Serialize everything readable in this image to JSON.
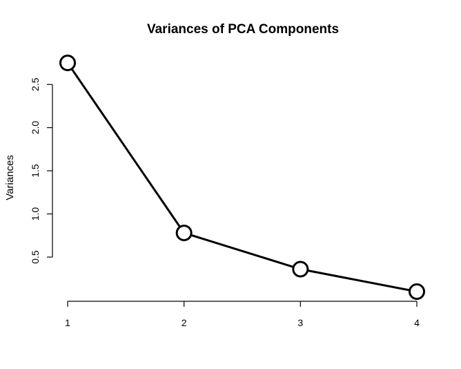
{
  "chart_data": {
    "type": "line",
    "title": "Variances of PCA Components",
    "xlabel": "",
    "ylabel": "Variances",
    "x": [
      1,
      2,
      3,
      4
    ],
    "values": [
      2.75,
      0.78,
      0.36,
      0.1
    ],
    "x_ticks": [
      "1",
      "2",
      "3",
      "4"
    ],
    "y_ticks": [
      "0.5",
      "1.0",
      "1.5",
      "2.0",
      "2.5"
    ],
    "y_tick_values": [
      0.5,
      1.0,
      1.5,
      2.0,
      2.5
    ],
    "xlim": [
      1,
      4
    ],
    "ylim": [
      0.1,
      2.75
    ],
    "grid": false,
    "line_color": "#000000",
    "marker": "open-circle"
  }
}
